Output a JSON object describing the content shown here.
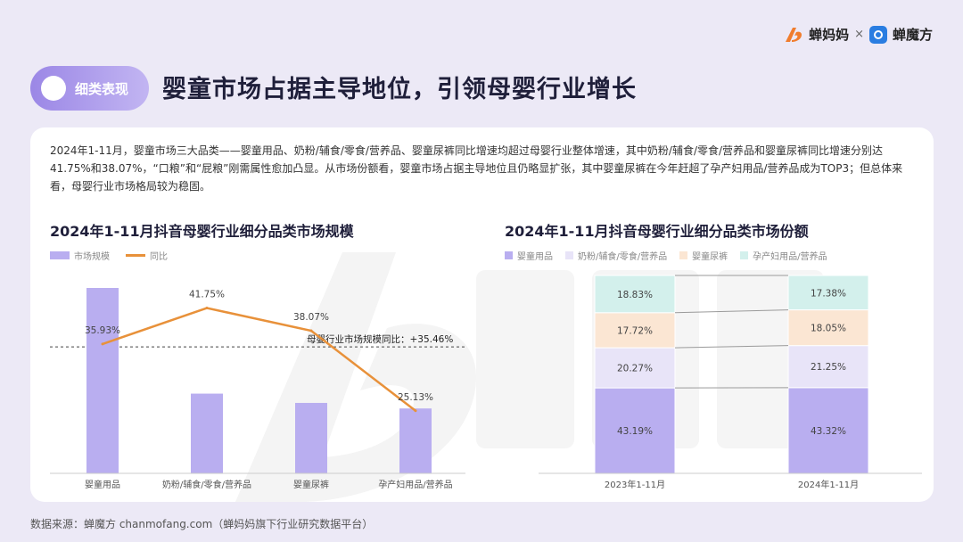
{
  "brand": {
    "name_a": "蝉妈妈",
    "times": "×",
    "name_b": "蝉魔方"
  },
  "header": {
    "pill_label": "细类表现",
    "title": "婴童市场占据主导地位，引领母婴行业增长"
  },
  "description": "2024年1-11月，婴童市场三大品类——婴童用品、奶粉/辅食/零食/营养品、婴童尿裤同比增速均超过母婴行业整体增速，其中奶粉/辅食/零食/营养品和婴童尿裤同比增速分别达41.75%和38.07%，“口粮”和“屁粮”刚需属性愈加凸显。从市场份额看，婴童市场占据主导地位且仍略显扩张，其中婴童尿裤在今年赶超了孕产妇用品/营养品成为TOP3；但总体来看，母婴行业市场格局较为稳固。",
  "colors": {
    "bar": "#b9aef0",
    "line": "#e8913a",
    "accent": "#9b87e6"
  },
  "chart_data": [
    {
      "type": "bar",
      "title": "2024年1-11月抖音母婴行业细分品类市场规模",
      "legend": [
        "市场规模",
        "同比"
      ],
      "legend_position": "top-left",
      "categories": [
        "婴童用品",
        "奶粉/辅食/零食/营养品",
        "婴童尿裤",
        "孕产妇用品/营养品"
      ],
      "bar_values": [
        100,
        43,
        38,
        35
      ],
      "bar_scale_max": 100,
      "line_series": {
        "name": "同比",
        "values": [
          35.93,
          41.75,
          38.07,
          25.13
        ],
        "labels": [
          "35.93%",
          "41.75%",
          "38.07%",
          "25.13%"
        ],
        "range": [
          15,
          45
        ]
      },
      "reference_line": {
        "value": 35.46,
        "label": "母婴行业市场规模同比：+35.46%"
      }
    },
    {
      "type": "bar",
      "stacked": true,
      "percent": true,
      "title": "2024年1-11月抖音母婴行业细分品类市场份额",
      "legend_position": "top",
      "categories": [
        "2023年1-11月",
        "2024年1-11月"
      ],
      "series": [
        {
          "name": "婴童用品",
          "values": [
            43.19,
            43.32
          ],
          "labels": [
            "43.19%",
            "43.32%"
          ],
          "color": "#b9aef0"
        },
        {
          "name": "奶粉/辅食/零食/营养品",
          "values": [
            20.27,
            21.25
          ],
          "labels": [
            "20.27%",
            "21.25%"
          ],
          "color": "#e8e4f8"
        },
        {
          "name": "婴童尿裤",
          "values": [
            17.72,
            18.05
          ],
          "labels": [
            "17.72%",
            "18.05%"
          ],
          "color": "#fbe6d3"
        },
        {
          "name": "孕产妇用品/营养品",
          "values": [
            18.83,
            17.38
          ],
          "labels": [
            "18.83%",
            "17.38%"
          ],
          "color": "#d3f0ec"
        }
      ]
    }
  ],
  "source": "数据来源：蝉魔方 chanmofang.com（蝉妈妈旗下行业研究数据平台）"
}
